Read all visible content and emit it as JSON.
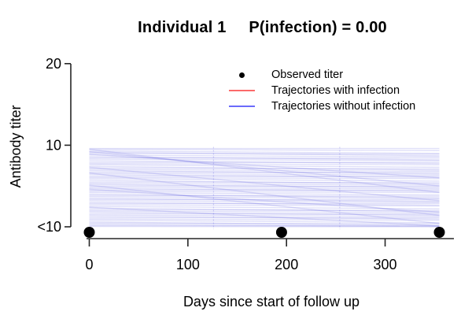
{
  "title": "Individual 1     P(infection) = 0.00",
  "legend": {
    "items": [
      {
        "label": "Observed titer",
        "marker": "point",
        "color": "#000000"
      },
      {
        "label": "Trajectories with infection",
        "marker": "line",
        "color": "#fb6a6a"
      },
      {
        "label": "Trajectories without infection",
        "marker": "line",
        "color": "#6a6afb"
      }
    ]
  },
  "chart_data": {
    "type": "line",
    "title": "Individual 1     P(infection) = 0.00",
    "xlabel": "Days since start of follow up",
    "ylabel": "Antibody titer",
    "x_ticks": [
      0,
      100,
      200,
      300
    ],
    "x_tick_labels": [
      "0",
      "100",
      "200",
      "300"
    ],
    "y_tick_values": [
      0,
      10,
      20
    ],
    "y_tick_labels": [
      "<10",
      "10",
      "20"
    ],
    "xlim": [
      0,
      370
    ],
    "ylim_labels": [
      "<10",
      "20"
    ],
    "individual": 1,
    "p_infection": "0.00",
    "observed_points": [
      {
        "day": 0,
        "titer": "<10"
      },
      {
        "day": 195,
        "titer": "<10"
      },
      {
        "day": 355,
        "titer": "<10"
      }
    ],
    "trajectory_day_range": [
      0,
      355
    ],
    "knot_days": [
      126,
      254
    ],
    "style": {
      "trajectory_color": "#4040db",
      "trajectory_opacity": 0.16,
      "axis_color": "#262626",
      "point_color": "#000000"
    },
    "trajectories": [
      {
        "y0": 9.6,
        "y1": 9.6
      },
      {
        "y0": 9.5,
        "y1": 9.35
      },
      {
        "y0": 9.3,
        "y1": 9.0
      },
      {
        "y0": 9.15,
        "y1": 8.7
      },
      {
        "y0": 9.0,
        "y1": 8.9
      },
      {
        "y0": 8.8,
        "y1": 8.55
      },
      {
        "y0": 8.6,
        "y1": 8.2
      },
      {
        "y0": 8.45,
        "y1": 8.4
      },
      {
        "y0": 8.3,
        "y1": 8.1
      },
      {
        "y0": 8.1,
        "y1": 7.75
      },
      {
        "y0": 7.9,
        "y1": 7.9
      },
      {
        "y0": 7.75,
        "y1": 7.6
      },
      {
        "y0": 7.6,
        "y1": 7.3
      },
      {
        "y0": 7.4,
        "y1": 6.95
      },
      {
        "y0": 7.2,
        "y1": 7.1
      },
      {
        "y0": 7.05,
        "y1": 6.8
      },
      {
        "y0": 6.9,
        "y1": 6.5
      },
      {
        "y0": 6.7,
        "y1": 6.65
      },
      {
        "y0": 6.55,
        "y1": 6.35
      },
      {
        "y0": 6.4,
        "y1": 6.05
      },
      {
        "y0": 6.2,
        "y1": 6.2
      },
      {
        "y0": 6.05,
        "y1": 5.9
      },
      {
        "y0": 5.9,
        "y1": 5.6
      },
      {
        "y0": 5.7,
        "y1": 5.25
      },
      {
        "y0": 5.5,
        "y1": 5.4
      },
      {
        "y0": 5.35,
        "y1": 5.1
      },
      {
        "y0": 5.2,
        "y1": 4.8
      },
      {
        "y0": 5.0,
        "y1": 4.95
      },
      {
        "y0": 4.85,
        "y1": 4.65
      },
      {
        "y0": 4.7,
        "y1": 4.35
      },
      {
        "y0": 4.5,
        "y1": 4.5
      },
      {
        "y0": 4.35,
        "y1": 4.2
      },
      {
        "y0": 4.2,
        "y1": 3.9
      },
      {
        "y0": 4.0,
        "y1": 3.55
      },
      {
        "y0": 3.85,
        "y1": 3.75
      },
      {
        "y0": 3.7,
        "y1": 3.45
      },
      {
        "y0": 3.5,
        "y1": 3.1
      },
      {
        "y0": 3.35,
        "y1": 3.3
      },
      {
        "y0": 3.2,
        "y1": 3.0
      },
      {
        "y0": 3.0,
        "y1": 2.65
      },
      {
        "y0": 2.85,
        "y1": 2.85
      },
      {
        "y0": 2.7,
        "y1": 2.55
      },
      {
        "y0": 2.5,
        "y1": 2.2
      },
      {
        "y0": 2.3,
        "y1": 1.85
      },
      {
        "y0": 2.1,
        "y1": 2.0
      },
      {
        "y0": 1.95,
        "y1": 1.7
      },
      {
        "y0": 1.8,
        "y1": 1.4
      },
      {
        "y0": 1.6,
        "y1": 1.55
      },
      {
        "y0": 1.45,
        "y1": 1.25
      },
      {
        "y0": 1.3,
        "y1": 0.95
      },
      {
        "y0": 1.1,
        "y1": 1.1
      },
      {
        "y0": 0.95,
        "y1": 0.8
      },
      {
        "y0": 0.8,
        "y1": 0.5
      },
      {
        "y0": 0.6,
        "y1": 0.15
      },
      {
        "y0": 0.45,
        "y1": 0.35
      },
      {
        "y0": 0.3,
        "y1": 0.05
      },
      {
        "y0": 0.15,
        "y1": 0.1
      },
      {
        "y0": 0.05,
        "y1": 0.0
      },
      {
        "y0": 9.5,
        "y1": 4.2
      },
      {
        "y0": 9.2,
        "y1": 5.0
      },
      {
        "y0": 8.9,
        "y1": 6.0
      },
      {
        "y0": 7.3,
        "y1": 3.2
      },
      {
        "y0": 6.6,
        "y1": 1.4
      },
      {
        "y0": 5.1,
        "y1": 0.4
      },
      {
        "y0": 4.6,
        "y1": 1.8
      },
      {
        "y0": 2.4,
        "y1": 0.1
      }
    ]
  }
}
